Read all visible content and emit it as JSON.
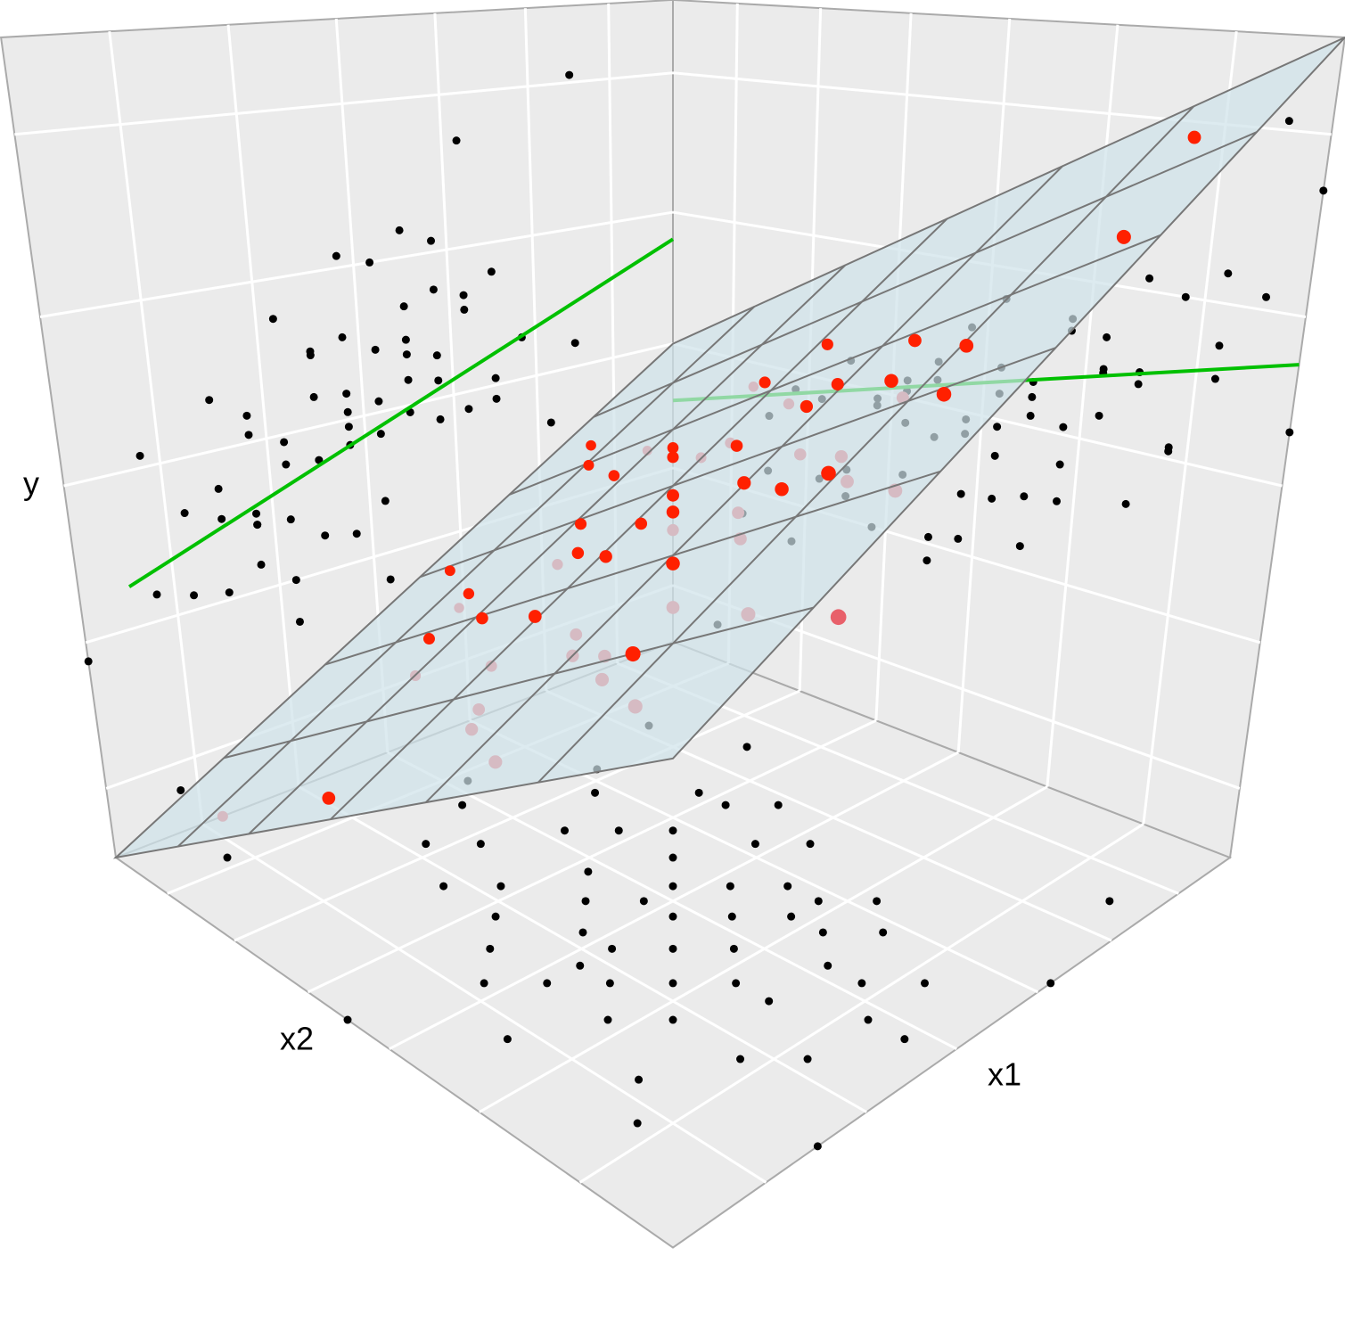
{
  "chart_data": {
    "type": "scatter3d",
    "x1_label": "x1",
    "x2_label": "x2",
    "y_label": "y",
    "x1lim": [
      -1,
      1
    ],
    "x2lim": [
      -1,
      1
    ],
    "ylim": [
      -1,
      1
    ],
    "x1ticks": [
      -0.75,
      -0.45,
      -0.15,
      0.15,
      0.45,
      0.75
    ],
    "x2ticks": [
      -0.75,
      -0.45,
      -0.15,
      0.15,
      0.45,
      0.75
    ],
    "yticks": [
      -0.8,
      -0.4,
      0,
      0.4,
      0.8
    ],
    "grid": true,
    "points": [
      [
        0.1,
        0.2,
        -0.02
      ],
      [
        -0.3,
        0.1,
        -0.25
      ],
      [
        0.4,
        -0.1,
        0.3
      ],
      [
        0.2,
        0.5,
        -0.22
      ],
      [
        -0.5,
        -0.2,
        -0.05
      ],
      [
        0.6,
        0.3,
        0.2
      ],
      [
        0.0,
        -0.4,
        0.12
      ],
      [
        0.3,
        0.3,
        0.08
      ],
      [
        -0.2,
        0.4,
        -0.4
      ],
      [
        0.5,
        0.0,
        0.18
      ],
      [
        0.8,
        0.4,
        0.3
      ],
      [
        -0.1,
        -0.1,
        0.05
      ],
      [
        0.2,
        -0.3,
        0.32
      ],
      [
        0.4,
        0.6,
        -0.18
      ],
      [
        -0.4,
        0.3,
        -0.3
      ],
      [
        0.1,
        0.7,
        -0.36
      ],
      [
        0.7,
        0.1,
        0.4
      ],
      [
        -0.6,
        -0.5,
        -0.15
      ],
      [
        0.3,
        0.1,
        0.03
      ],
      [
        0.0,
        0.3,
        -0.09
      ],
      [
        0.5,
        0.5,
        0.07
      ],
      [
        -0.2,
        -0.3,
        -0.04
      ],
      [
        0.9,
        0.2,
        0.43
      ],
      [
        0.2,
        0.0,
        0.14
      ],
      [
        -0.3,
        -0.6,
        0.07
      ],
      [
        0.6,
        0.7,
        -0.14
      ],
      [
        0.1,
        -0.2,
        0.23
      ],
      [
        -0.1,
        0.5,
        -0.22
      ],
      [
        0.4,
        0.2,
        0.02
      ],
      [
        0.3,
        0.8,
        -0.33
      ],
      [
        -0.4,
        -0.1,
        -0.06
      ],
      [
        0.7,
        0.5,
        0.02
      ],
      [
        0.0,
        0.0,
        0.07
      ],
      [
        0.5,
        -0.2,
        0.27
      ],
      [
        -0.7,
        0.1,
        -0.48
      ],
      [
        0.2,
        0.4,
        -0.02
      ],
      [
        0.8,
        0.0,
        0.47
      ],
      [
        -0.1,
        0.2,
        -0.07
      ],
      [
        0.3,
        0.5,
        -0.19
      ],
      [
        0.1,
        0.1,
        -0.06
      ],
      [
        -0.5,
        0.4,
        -0.52
      ],
      [
        0.6,
        -0.1,
        0.43
      ],
      [
        0.4,
        0.4,
        -0.08
      ],
      [
        -0.2,
        0.0,
        -0.02
      ],
      [
        0.2,
        0.6,
        -0.1
      ],
      [
        1.0,
        0.6,
        0.13
      ],
      [
        -0.3,
        0.5,
        -0.33
      ],
      [
        0.5,
        0.3,
        0.19
      ],
      [
        0.0,
        0.6,
        -0.38
      ],
      [
        0.3,
        -0.1,
        0.12
      ],
      [
        0.7,
        0.8,
        0.03
      ],
      [
        -0.1,
        -0.3,
        0.02
      ],
      [
        0.4,
        0.0,
        0.27
      ],
      [
        0.1,
        0.4,
        -0.23
      ],
      [
        -0.6,
        0.2,
        -0.32
      ],
      [
        0.8,
        0.2,
        0.22
      ],
      [
        0.2,
        0.2,
        0.07
      ],
      [
        0.6,
        0.1,
        0.17
      ],
      [
        -0.8,
        0.8,
        -0.88
      ],
      [
        0.9,
        -0.6,
        0.82
      ],
      [
        0.0,
        1.0,
        -0.45
      ],
      [
        1.0,
        -0.2,
        0.68
      ]
    ],
    "plane": {
      "intercept": 0,
      "x1_coef": 0.5,
      "x2_coef": -0.5,
      "color": "#cfe3ea",
      "edge_color": "#777777"
    },
    "above_color": "#ff2000",
    "below_color": "#e8606a",
    "projection_color": "#000000",
    "fits": {
      "color": "#00c000",
      "x2_fit": {
        "x2": [
          -1,
          0.87
        ],
        "y": [
          0.32,
          -0.29
        ]
      },
      "x1_fit": {
        "x1": [
          -1,
          1
        ],
        "y": [
          -0.18,
          0.29
        ]
      }
    }
  }
}
